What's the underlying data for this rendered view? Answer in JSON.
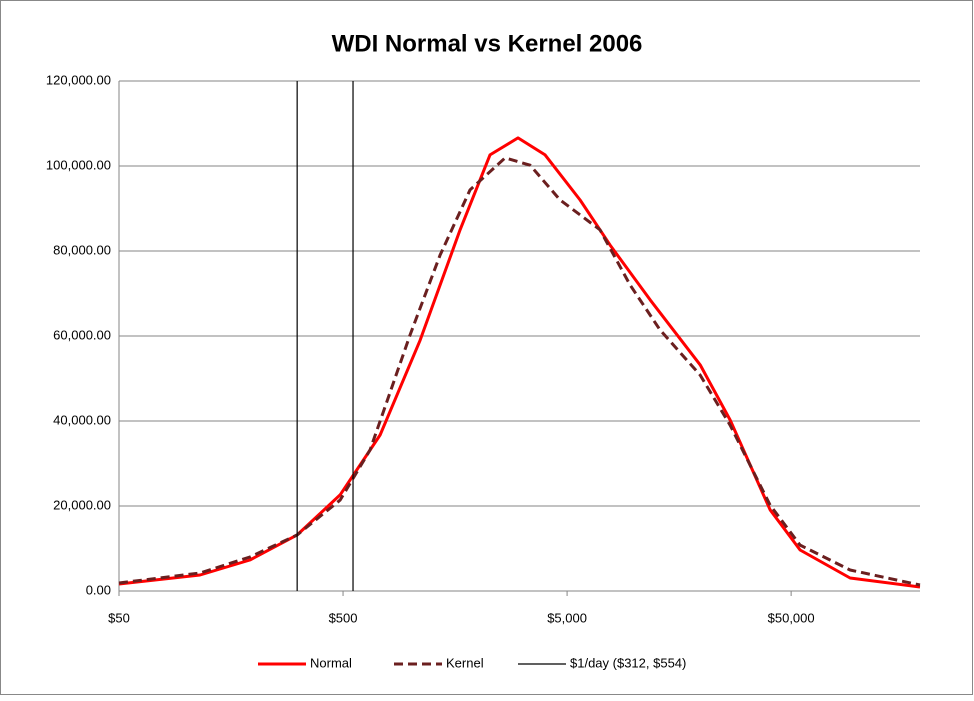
{
  "chart_data": {
    "type": "line",
    "title": "WDI Normal vs Kernel 2006",
    "xscale": "log",
    "grid": true,
    "legend": "bottom",
    "xlim": [
      50,
      188000
    ],
    "ylim": [
      0,
      120000
    ],
    "xticks": [
      {
        "value": 50,
        "label": "$50"
      },
      {
        "value": 500,
        "label": "$500"
      },
      {
        "value": 5000,
        "label": "$5,000"
      },
      {
        "value": 50000,
        "label": "$50,000"
      }
    ],
    "yticks": [
      {
        "value": 0,
        "label": "0.00"
      },
      {
        "value": 20000,
        "label": "20,000.00"
      },
      {
        "value": 40000,
        "label": "40,000.00"
      },
      {
        "value": 60000,
        "label": "60,000.00"
      },
      {
        "value": 80000,
        "label": "80,000.00"
      },
      {
        "value": 100000,
        "label": "100,000.00"
      },
      {
        "value": 120000,
        "label": "120,000.00"
      }
    ],
    "series": [
      {
        "name": "Normal",
        "color": "#ff0000",
        "style": "solid",
        "x": [
          50,
          115,
          192,
          312,
          485,
          732,
          1104,
          1665,
          2265,
          3020,
          3990,
          5715,
          7780,
          11750,
          19630,
          26730,
          40280,
          54800,
          91650,
          188000
        ],
        "values": [
          1650,
          3760,
          7300,
          13200,
          22600,
          36700,
          59000,
          85000,
          102600,
          106600,
          102600,
          92000,
          81400,
          68500,
          53200,
          40200,
          19100,
          9650,
          3060,
          940
        ]
      },
      {
        "name": "Kernel",
        "color": "#6b1f1f",
        "style": "dashed",
        "x": [
          50,
          115,
          192,
          312,
          485,
          660,
          995,
          1355,
          1845,
          2645,
          3420,
          4655,
          7015,
          9550,
          13000,
          19630,
          26730,
          40280,
          54800,
          91650,
          188000
        ],
        "values": [
          1880,
          4240,
          8000,
          13200,
          21400,
          33200,
          60200,
          79000,
          94400,
          101900,
          100200,
          92000,
          85000,
          72000,
          61400,
          50800,
          39000,
          20200,
          10800,
          4940,
          1400
        ]
      },
      {
        "name": "$1/day ($312, $554)",
        "color": "#000000",
        "style": "vline",
        "x": [
          312,
          554
        ]
      }
    ]
  }
}
